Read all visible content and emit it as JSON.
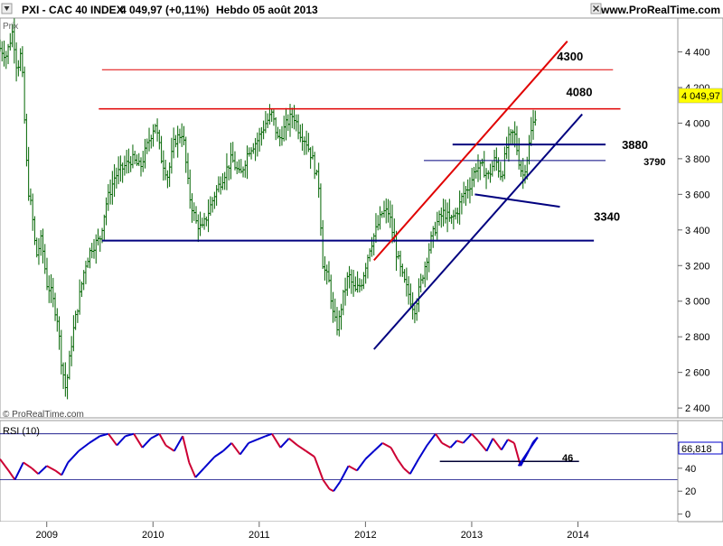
{
  "header": {
    "title": "PXI - CAC 40 INDEX",
    "price": "4 049,97 (+0,11%)",
    "period": "Hebdo  05 août 2013",
    "site": "www.ProRealTime.com"
  },
  "price_panel": {
    "axis_label": "Prix",
    "watermark": "© ProRealTime.com",
    "last_value_badge": "4 049,97"
  },
  "rsi_panel": {
    "title": "RSI (10)",
    "last_value_badge": "66,818",
    "level_label": "46"
  },
  "colors": {
    "candle": "#006400",
    "resistance": "#e00000",
    "support": "#00007f",
    "rsi_up": "#0000cc",
    "rsi_down": "#cc0033"
  },
  "chart_data": [
    {
      "type": "candlestick",
      "series_name": "CAC 40 INDEX",
      "timeframe": "Hebdo",
      "ylim": [
        2360,
        4580
      ],
      "y_ticks": [
        2400,
        2600,
        2800,
        3000,
        3200,
        3400,
        3600,
        3800,
        4000,
        4200,
        4400
      ],
      "y_tick_labels": [
        "2 400",
        "2 600",
        "2 800",
        "3 000",
        "3 200",
        "3 400",
        "3 600",
        "3 800",
        "4 000",
        "4 200",
        "4 400"
      ],
      "x_ticks": [
        "2009",
        "2010",
        "2011",
        "2012",
        "2013",
        "2014"
      ],
      "x_tick_years": [
        2009,
        2010,
        2011,
        2012,
        2013,
        2014
      ],
      "x_range": [
        2008.56,
        2014.94
      ],
      "price_points": [
        [
          2008.56,
          4420
        ],
        [
          2008.62,
          4380
        ],
        [
          2008.68,
          4520
        ],
        [
          2008.72,
          4300
        ],
        [
          2008.76,
          4400
        ],
        [
          2008.82,
          3650
        ],
        [
          2008.86,
          3500
        ],
        [
          2008.9,
          3250
        ],
        [
          2008.95,
          3350
        ],
        [
          2009.0,
          3100
        ],
        [
          2009.04,
          3050
        ],
        [
          2009.1,
          2900
        ],
        [
          2009.14,
          2650
        ],
        [
          2009.18,
          2500
        ],
        [
          2009.24,
          2800
        ],
        [
          2009.3,
          3000
        ],
        [
          2009.36,
          3200
        ],
        [
          2009.42,
          3300
        ],
        [
          2009.5,
          3350
        ],
        [
          2009.56,
          3550
        ],
        [
          2009.64,
          3700
        ],
        [
          2009.72,
          3750
        ],
        [
          2009.8,
          3800
        ],
        [
          2009.88,
          3750
        ],
        [
          2009.96,
          3900
        ],
        [
          2010.02,
          4000
        ],
        [
          2010.08,
          3800
        ],
        [
          2010.14,
          3700
        ],
        [
          2010.2,
          3900
        ],
        [
          2010.28,
          3950
        ],
        [
          2010.34,
          3600
        ],
        [
          2010.4,
          3450
        ],
        [
          2010.46,
          3400
        ],
        [
          2010.52,
          3500
        ],
        [
          2010.58,
          3600
        ],
        [
          2010.66,
          3700
        ],
        [
          2010.74,
          3800
        ],
        [
          2010.82,
          3700
        ],
        [
          2010.9,
          3850
        ],
        [
          2010.98,
          3900
        ],
        [
          2011.06,
          4000
        ],
        [
          2011.12,
          4050
        ],
        [
          2011.18,
          3900
        ],
        [
          2011.26,
          4000
        ],
        [
          2011.32,
          4050
        ],
        [
          2011.38,
          3950
        ],
        [
          2011.44,
          3900
        ],
        [
          2011.5,
          3800
        ],
        [
          2011.56,
          3650
        ],
        [
          2011.6,
          3200
        ],
        [
          2011.66,
          3100
        ],
        [
          2011.7,
          2900
        ],
        [
          2011.74,
          2850
        ],
        [
          2011.78,
          3000
        ],
        [
          2011.84,
          3150
        ],
        [
          2011.9,
          3050
        ],
        [
          2011.96,
          3100
        ],
        [
          2012.04,
          3300
        ],
        [
          2012.1,
          3400
        ],
        [
          2012.16,
          3500
        ],
        [
          2012.22,
          3500
        ],
        [
          2012.28,
          3300
        ],
        [
          2012.34,
          3150
        ],
        [
          2012.4,
          3050
        ],
        [
          2012.46,
          2950
        ],
        [
          2012.5,
          3050
        ],
        [
          2012.56,
          3200
        ],
        [
          2012.62,
          3350
        ],
        [
          2012.68,
          3450
        ],
        [
          2012.74,
          3500
        ],
        [
          2012.8,
          3450
        ],
        [
          2012.86,
          3500
        ],
        [
          2012.92,
          3600
        ],
        [
          2012.98,
          3650
        ],
        [
          2013.04,
          3750
        ],
        [
          2013.1,
          3750
        ],
        [
          2013.16,
          3700
        ],
        [
          2013.22,
          3800
        ],
        [
          2013.28,
          3700
        ],
        [
          2013.34,
          3900
        ],
        [
          2013.4,
          3950
        ],
        [
          2013.44,
          3800
        ],
        [
          2013.48,
          3700
        ],
        [
          2013.52,
          3800
        ],
        [
          2013.56,
          3950
        ],
        [
          2013.6,
          4050
        ]
      ],
      "lines": [
        {
          "kind": "horizontal",
          "color": "resistance",
          "y": 4300,
          "x": [
            2009.52,
            2014.33
          ],
          "label": "4300"
        },
        {
          "kind": "horizontal",
          "color": "resistance",
          "y": 4080,
          "x": [
            2009.49,
            2014.4
          ],
          "label": "4080"
        },
        {
          "kind": "horizontal",
          "color": "support",
          "y": 3880,
          "x": [
            2012.82,
            2014.26
          ],
          "label": "3880"
        },
        {
          "kind": "horizontal",
          "color": "support",
          "y": 3790,
          "x": [
            2012.55,
            2014.26
          ],
          "label": "3790"
        },
        {
          "kind": "horizontal",
          "color": "support",
          "y": 3340,
          "x": [
            2009.52,
            2014.15
          ],
          "label": "3340"
        },
        {
          "kind": "trend",
          "color": "resistance",
          "from": [
            2012.08,
            3230
          ],
          "to": [
            2013.9,
            4460
          ]
        },
        {
          "kind": "trend",
          "color": "support",
          "from": [
            2012.08,
            2730
          ],
          "to": [
            2014.04,
            4050
          ]
        },
        {
          "kind": "trend",
          "color": "support",
          "from": [
            2013.03,
            3600
          ],
          "to": [
            2013.83,
            3530
          ]
        }
      ],
      "last_price": 4049.97
    },
    {
      "type": "line",
      "series_name": "RSI (10)",
      "ylim": [
        -5,
        80
      ],
      "y_ticks": [
        0,
        20,
        40,
        60
      ],
      "reference_lines": [
        70,
        30
      ],
      "level_line": {
        "y": 46,
        "x": [
          2012.7,
          2014.01
        ],
        "label": "46"
      },
      "trend_segment": {
        "from": [
          2013.44,
          42
        ],
        "to": [
          2013.62,
          67
        ]
      },
      "rsi_points": [
        [
          2008.56,
          48
        ],
        [
          2008.64,
          38
        ],
        [
          2008.7,
          30
        ],
        [
          2008.78,
          45
        ],
        [
          2008.86,
          40
        ],
        [
          2008.92,
          35
        ],
        [
          2009.0,
          42
        ],
        [
          2009.08,
          38
        ],
        [
          2009.14,
          34
        ],
        [
          2009.2,
          45
        ],
        [
          2009.3,
          55
        ],
        [
          2009.4,
          62
        ],
        [
          2009.5,
          68
        ],
        [
          2009.58,
          70
        ],
        [
          2009.66,
          60
        ],
        [
          2009.74,
          68
        ],
        [
          2009.82,
          70
        ],
        [
          2009.9,
          58
        ],
        [
          2009.98,
          66
        ],
        [
          2010.06,
          70
        ],
        [
          2010.12,
          60
        ],
        [
          2010.2,
          55
        ],
        [
          2010.28,
          68
        ],
        [
          2010.34,
          45
        ],
        [
          2010.4,
          32
        ],
        [
          2010.48,
          40
        ],
        [
          2010.58,
          50
        ],
        [
          2010.66,
          55
        ],
        [
          2010.74,
          62
        ],
        [
          2010.82,
          52
        ],
        [
          2010.9,
          62
        ],
        [
          2010.98,
          65
        ],
        [
          2011.06,
          68
        ],
        [
          2011.12,
          70
        ],
        [
          2011.2,
          58
        ],
        [
          2011.28,
          66
        ],
        [
          2011.36,
          60
        ],
        [
          2011.44,
          55
        ],
        [
          2011.52,
          50
        ],
        [
          2011.6,
          30
        ],
        [
          2011.66,
          22
        ],
        [
          2011.7,
          20
        ],
        [
          2011.76,
          28
        ],
        [
          2011.84,
          42
        ],
        [
          2011.92,
          38
        ],
        [
          2012.0,
          48
        ],
        [
          2012.08,
          55
        ],
        [
          2012.16,
          62
        ],
        [
          2012.24,
          58
        ],
        [
          2012.3,
          48
        ],
        [
          2012.36,
          40
        ],
        [
          2012.42,
          35
        ],
        [
          2012.5,
          48
        ],
        [
          2012.58,
          60
        ],
        [
          2012.66,
          70
        ],
        [
          2012.72,
          62
        ],
        [
          2012.8,
          58
        ],
        [
          2012.86,
          64
        ],
        [
          2012.92,
          62
        ],
        [
          2013.0,
          70
        ],
        [
          2013.06,
          64
        ],
        [
          2013.14,
          55
        ],
        [
          2013.2,
          66
        ],
        [
          2013.28,
          56
        ],
        [
          2013.34,
          65
        ],
        [
          2013.4,
          62
        ],
        [
          2013.46,
          42
        ],
        [
          2013.52,
          52
        ],
        [
          2013.58,
          63
        ],
        [
          2013.62,
          66.818
        ]
      ],
      "last_value": 66.818
    }
  ]
}
